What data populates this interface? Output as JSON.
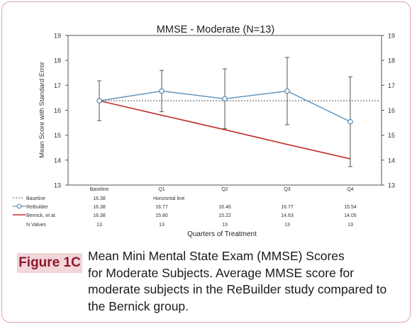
{
  "figure_label": "Figure 1C",
  "caption_lines": [
    "Mean Mini Mental State Exam (MMSE) Scores",
    "for Moderate Subjects.  Average MMSE score for",
    "moderate subjects in the ReBuilder study compared to",
    "the Bernick group."
  ],
  "chart_data": {
    "type": "line",
    "title": "MMSE - Moderate (N=13)",
    "ylabel": "Mean Score with Standard Error",
    "xlabel": "Quarters of Treatment",
    "categories": [
      "Baseline",
      "Q1",
      "Q2",
      "Q3",
      "Q4"
    ],
    "ylim": [
      13,
      19
    ],
    "yticks": [
      13,
      14,
      15,
      16,
      17,
      18,
      19
    ],
    "secondary_y_axis": true,
    "grid": false,
    "legend": "table-below",
    "series": [
      {
        "name": "Baseline",
        "style": "dotted",
        "color": "#555555",
        "values": [
          16.38,
          16.38,
          16.38,
          16.38,
          16.38
        ],
        "table_values": [
          "16.38",
          "Horizontal line",
          "",
          "",
          ""
        ]
      },
      {
        "name": "ReBuilder",
        "style": "line-open-circle",
        "color": "#5b8db5",
        "values": [
          16.38,
          16.77,
          16.46,
          16.77,
          15.54
        ],
        "error": [
          0.8,
          0.83,
          1.2,
          1.35,
          1.8
        ],
        "table_values": [
          "16.38",
          "16.77",
          "16.46",
          "16.77",
          "15.54"
        ]
      },
      {
        "name": "Bernick, et al.",
        "style": "line",
        "color": "#c0302d",
        "values": [
          16.38,
          15.8,
          15.22,
          14.63,
          14.05
        ],
        "table_values": [
          "16.38",
          "15.80",
          "15.22",
          "14.63",
          "14.05"
        ]
      }
    ],
    "n_values": {
      "name": "N Values",
      "values": [
        "13",
        "13",
        "13",
        "13",
        "13"
      ]
    }
  }
}
